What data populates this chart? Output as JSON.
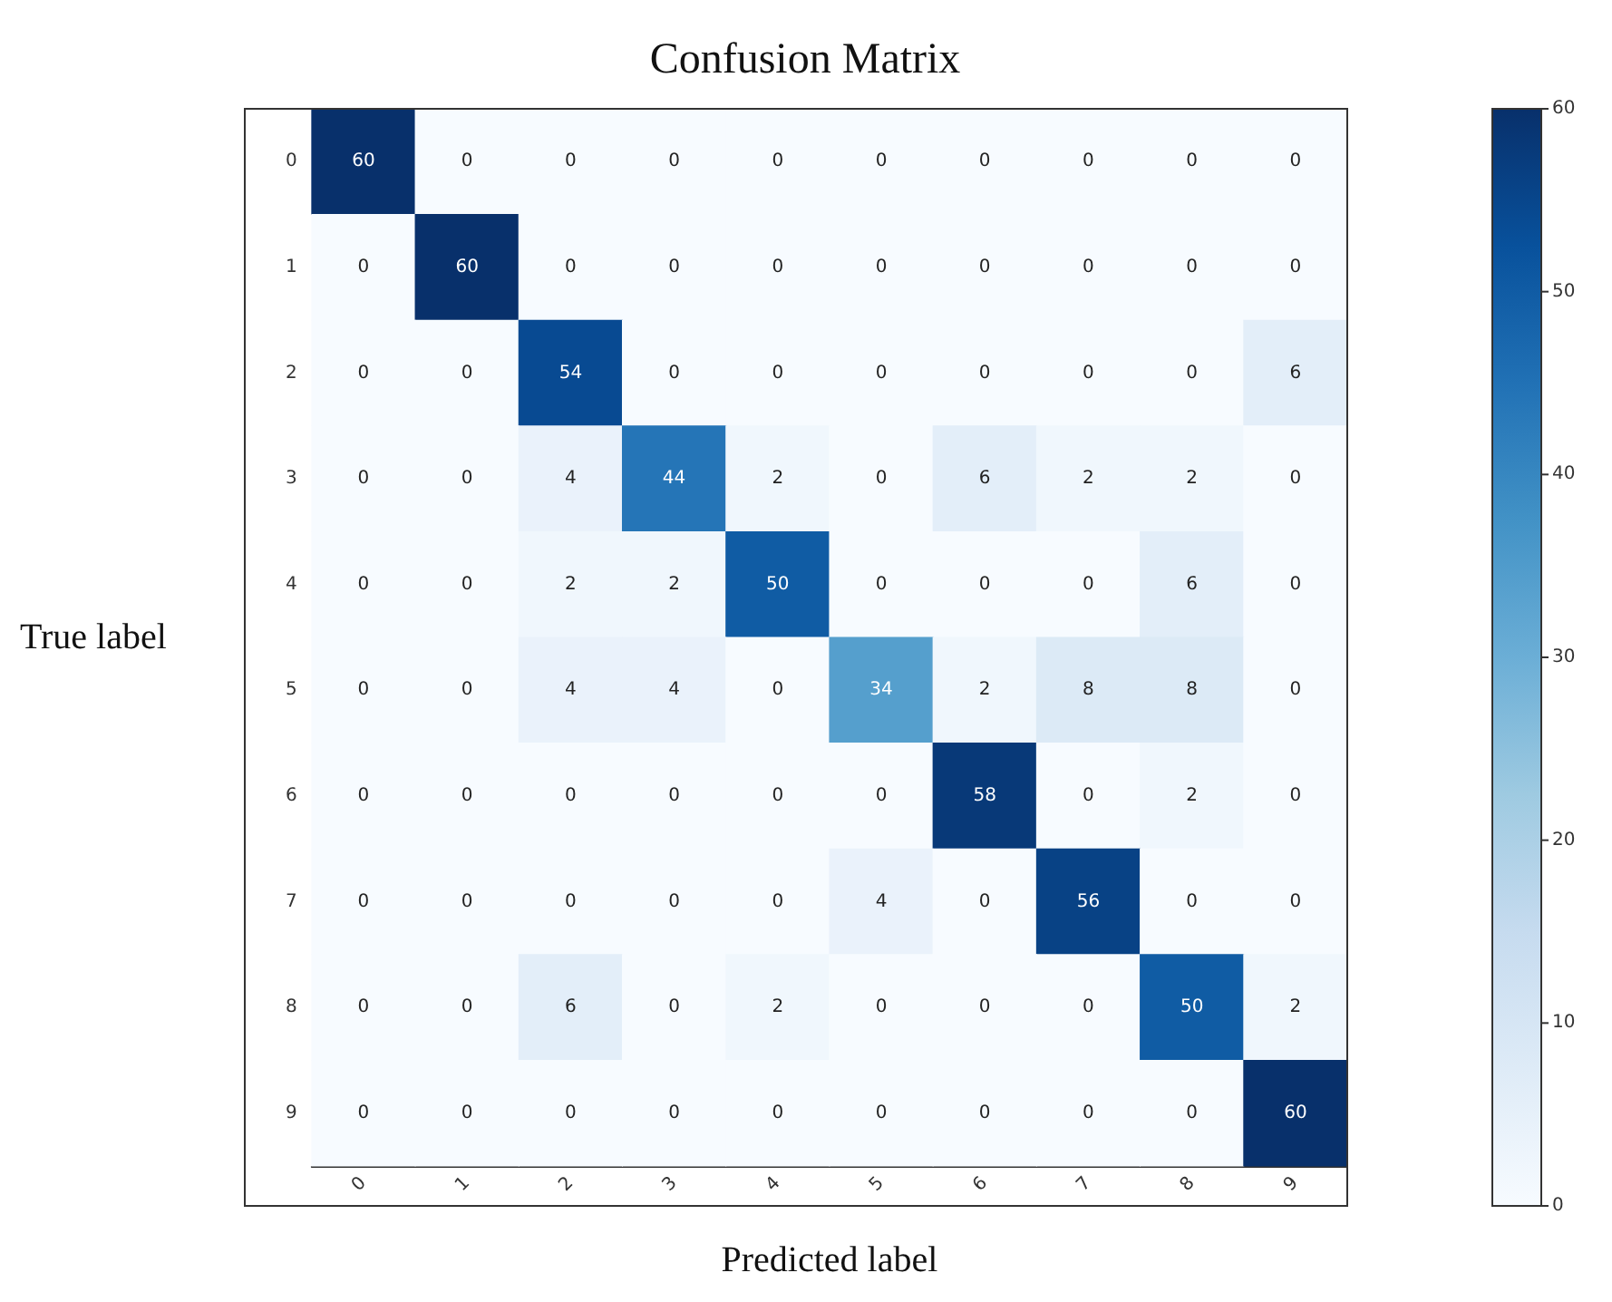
{
  "chart_data": {
    "type": "heatmap",
    "title": "Confusion Matrix",
    "xlabel": "Predicted label",
    "ylabel": "True label",
    "categories": [
      "0",
      "1",
      "2",
      "3",
      "4",
      "5",
      "6",
      "7",
      "8",
      "9"
    ],
    "y_categories": [
      "0",
      "1",
      "2",
      "3",
      "4",
      "5",
      "6",
      "7",
      "8",
      "9"
    ],
    "cells": [
      [
        60,
        0,
        0,
        0,
        0,
        0,
        0,
        0,
        0,
        0
      ],
      [
        0,
        60,
        0,
        0,
        0,
        0,
        0,
        0,
        0,
        0
      ],
      [
        0,
        0,
        54,
        0,
        0,
        0,
        0,
        0,
        0,
        6
      ],
      [
        0,
        0,
        4,
        44,
        2,
        0,
        6,
        2,
        2,
        0
      ],
      [
        0,
        0,
        2,
        2,
        50,
        0,
        0,
        0,
        6,
        0
      ],
      [
        0,
        0,
        4,
        4,
        0,
        34,
        2,
        8,
        8,
        0
      ],
      [
        0,
        0,
        0,
        0,
        0,
        0,
        58,
        0,
        2,
        0
      ],
      [
        0,
        0,
        0,
        0,
        0,
        4,
        0,
        56,
        0,
        0
      ],
      [
        0,
        0,
        6,
        0,
        2,
        0,
        0,
        0,
        50,
        2
      ],
      [
        0,
        0,
        0,
        0,
        0,
        0,
        0,
        0,
        0,
        60
      ]
    ],
    "clim": [
      0,
      60
    ],
    "cticks": [
      0,
      10,
      20,
      30,
      40,
      50,
      60
    ],
    "data_labels": true
  }
}
